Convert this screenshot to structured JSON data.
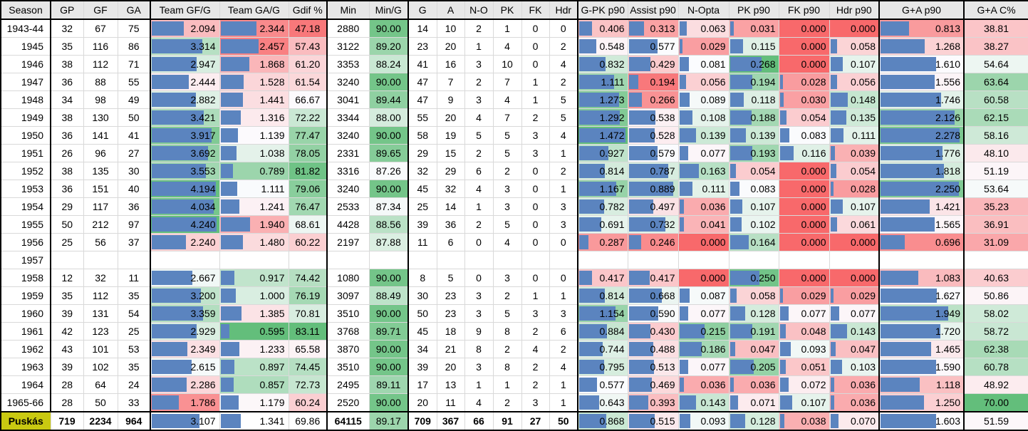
{
  "table": {
    "headers": [
      "Season",
      "GP",
      "GF",
      "GA",
      "Team GF/G",
      "Team GA/G",
      "Gdif %",
      "Min",
      "Min/G",
      "G",
      "A",
      "N-O",
      "PK",
      "FK",
      "Hdr",
      "G-PK p90",
      "Assist p90",
      "N-Opta",
      "PK p90",
      "FK p90",
      "Hdr p90",
      "G+A p90",
      "G+A C%"
    ],
    "rows": [
      [
        "1943-44",
        "32",
        "67",
        "75",
        "2.094",
        "2.344",
        "47.18",
        "2880",
        "90.00",
        "14",
        "10",
        "2",
        "1",
        "0",
        "0",
        "0.406",
        "0.313",
        "0.063",
        "0.031",
        "0.000",
        "0.000",
        "0.813",
        "38.81"
      ],
      [
        "1945",
        "35",
        "116",
        "86",
        "3.314",
        "2.457",
        "57.43",
        "3122",
        "89.20",
        "23",
        "20",
        "1",
        "4",
        "0",
        "2",
        "0.548",
        "0.577",
        "0.029",
        "0.115",
        "0.000",
        "0.058",
        "1.268",
        "38.27"
      ],
      [
        "1946",
        "38",
        "112",
        "71",
        "2.947",
        "1.868",
        "61.20",
        "3353",
        "88.24",
        "41",
        "16",
        "3",
        "10",
        "0",
        "4",
        "0.832",
        "0.429",
        "0.081",
        "0.268",
        "0.000",
        "0.107",
        "1.610",
        "54.64"
      ],
      [
        "1947",
        "36",
        "88",
        "55",
        "2.444",
        "1.528",
        "61.54",
        "3240",
        "90.00",
        "47",
        "7",
        "2",
        "7",
        "1",
        "2",
        "1.111",
        "0.194",
        "0.056",
        "0.194",
        "0.028",
        "0.056",
        "1.556",
        "63.64"
      ],
      [
        "1948",
        "34",
        "98",
        "49",
        "2.882",
        "1.441",
        "66.67",
        "3041",
        "89.44",
        "47",
        "9",
        "3",
        "4",
        "1",
        "5",
        "1.273",
        "0.266",
        "0.089",
        "0.118",
        "0.030",
        "0.148",
        "1.746",
        "60.58"
      ],
      [
        "1949",
        "38",
        "130",
        "50",
        "3.421",
        "1.316",
        "72.22",
        "3344",
        "88.00",
        "55",
        "20",
        "4",
        "7",
        "2",
        "5",
        "1.292",
        "0.538",
        "0.108",
        "0.188",
        "0.054",
        "0.135",
        "2.126",
        "62.15"
      ],
      [
        "1950",
        "36",
        "141",
        "41",
        "3.917",
        "1.139",
        "77.47",
        "3240",
        "90.00",
        "58",
        "19",
        "5",
        "5",
        "3",
        "4",
        "1.472",
        "0.528",
        "0.139",
        "0.139",
        "0.083",
        "0.111",
        "2.278",
        "58.16"
      ],
      [
        "1951",
        "26",
        "96",
        "27",
        "3.692",
        "1.038",
        "78.05",
        "2331",
        "89.65",
        "29",
        "15",
        "2",
        "5",
        "3",
        "1",
        "0.927",
        "0.579",
        "0.077",
        "0.193",
        "0.116",
        "0.039",
        "1.776",
        "48.10"
      ],
      [
        "1952",
        "38",
        "135",
        "30",
        "3.553",
        "0.789",
        "81.82",
        "3316",
        "87.26",
        "32",
        "29",
        "6",
        "2",
        "0",
        "2",
        "0.814",
        "0.787",
        "0.163",
        "0.054",
        "0.000",
        "0.054",
        "1.818",
        "51.19"
      ],
      [
        "1953",
        "36",
        "151",
        "40",
        "4.194",
        "1.111",
        "79.06",
        "3240",
        "90.00",
        "45",
        "32",
        "4",
        "3",
        "0",
        "1",
        "1.167",
        "0.889",
        "0.111",
        "0.083",
        "0.000",
        "0.028",
        "2.250",
        "53.64"
      ],
      [
        "1954",
        "29",
        "117",
        "36",
        "4.034",
        "1.241",
        "76.47",
        "2533",
        "87.34",
        "25",
        "14",
        "1",
        "3",
        "0",
        "3",
        "0.782",
        "0.497",
        "0.036",
        "0.107",
        "0.000",
        "0.107",
        "1.421",
        "35.23"
      ],
      [
        "1955",
        "50",
        "212",
        "97",
        "4.240",
        "1.940",
        "68.61",
        "4428",
        "88.56",
        "39",
        "36",
        "2",
        "5",
        "0",
        "3",
        "0.691",
        "0.732",
        "0.041",
        "0.102",
        "0.000",
        "0.061",
        "1.565",
        "36.91"
      ],
      [
        "1956",
        "25",
        "56",
        "37",
        "2.240",
        "1.480",
        "60.22",
        "2197",
        "87.88",
        "11",
        "6",
        "0",
        "4",
        "0",
        "0",
        "0.287",
        "0.246",
        "0.000",
        "0.164",
        "0.000",
        "0.000",
        "0.696",
        "31.09"
      ],
      [
        "1957",
        "",
        "",
        "",
        "",
        "",
        "",
        "",
        "",
        "",
        "",
        "",
        "",
        "",
        "",
        "",
        "",
        "",
        "",
        "",
        "",
        "",
        ""
      ],
      [
        "1958",
        "12",
        "32",
        "11",
        "2.667",
        "0.917",
        "74.42",
        "1080",
        "90.00",
        "8",
        "5",
        "0",
        "3",
        "0",
        "0",
        "0.417",
        "0.417",
        "0.000",
        "0.250",
        "0.000",
        "0.000",
        "1.083",
        "40.63"
      ],
      [
        "1959",
        "35",
        "112",
        "35",
        "3.200",
        "1.000",
        "76.19",
        "3097",
        "88.49",
        "30",
        "23",
        "3",
        "2",
        "1",
        "1",
        "0.814",
        "0.668",
        "0.087",
        "0.058",
        "0.029",
        "0.029",
        "1.627",
        "50.86"
      ],
      [
        "1960",
        "39",
        "131",
        "54",
        "3.359",
        "1.385",
        "70.81",
        "3510",
        "90.00",
        "50",
        "23",
        "3",
        "5",
        "3",
        "3",
        "1.154",
        "0.590",
        "0.077",
        "0.128",
        "0.077",
        "0.077",
        "1.949",
        "58.02"
      ],
      [
        "1961",
        "42",
        "123",
        "25",
        "2.929",
        "0.595",
        "83.11",
        "3768",
        "89.71",
        "45",
        "18",
        "9",
        "8",
        "2",
        "6",
        "0.884",
        "0.430",
        "0.215",
        "0.191",
        "0.048",
        "0.143",
        "1.720",
        "58.72"
      ],
      [
        "1962",
        "43",
        "101",
        "53",
        "2.349",
        "1.233",
        "65.58",
        "3870",
        "90.00",
        "34",
        "21",
        "8",
        "2",
        "4",
        "2",
        "0.744",
        "0.488",
        "0.186",
        "0.047",
        "0.093",
        "0.047",
        "1.465",
        "62.38"
      ],
      [
        "1963",
        "39",
        "102",
        "35",
        "2.615",
        "0.897",
        "74.45",
        "3510",
        "90.00",
        "39",
        "20",
        "3",
        "8",
        "2",
        "4",
        "0.795",
        "0.513",
        "0.077",
        "0.205",
        "0.051",
        "0.103",
        "1.590",
        "60.78"
      ],
      [
        "1964",
        "28",
        "64",
        "24",
        "2.286",
        "0.857",
        "72.73",
        "2495",
        "89.11",
        "17",
        "13",
        "1",
        "1",
        "2",
        "1",
        "0.577",
        "0.469",
        "0.036",
        "0.036",
        "0.072",
        "0.036",
        "1.118",
        "48.92"
      ],
      [
        "1965-66",
        "28",
        "50",
        "33",
        "1.786",
        "1.179",
        "60.24",
        "2520",
        "90.00",
        "20",
        "11",
        "4",
        "2",
        "3",
        "1",
        "0.643",
        "0.393",
        "0.143",
        "0.071",
        "0.107",
        "0.036",
        "1.250",
        "70.00"
      ]
    ],
    "total": [
      "Puskás",
      "719",
      "2234",
      "964",
      "3.107",
      "1.341",
      "69.86",
      "64115",
      "89.17",
      "709",
      "367",
      "66",
      "91",
      "27",
      "50",
      "0.868",
      "0.515",
      "0.093",
      "0.128",
      "0.038",
      "0.070",
      "1.603",
      "51.59"
    ]
  },
  "colors": {
    "bar_blue": "#5b84bf",
    "scale_red": "#f8696b",
    "scale_white": "#fcfcff",
    "scale_green": "#63be7b",
    "min_g_green": "#74c589",
    "header_bg": "#e7e7e7",
    "total_label_bg": "#c9c911",
    "grid_line": "#d9d9d9",
    "section_border": "#000000"
  }
}
